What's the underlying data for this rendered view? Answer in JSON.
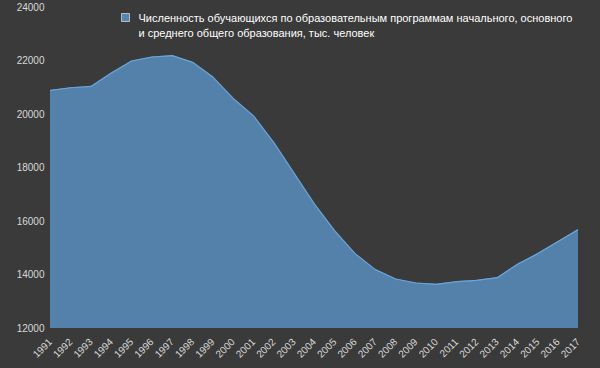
{
  "chart_data": {
    "type": "area",
    "x": [
      1991,
      1992,
      1993,
      1994,
      1995,
      1996,
      1997,
      1998,
      1999,
      2000,
      2001,
      2002,
      2003,
      2004,
      2005,
      2006,
      2007,
      2008,
      2009,
      2010,
      2011,
      2012,
      2013,
      2014,
      2015,
      2016,
      2017
    ],
    "series": [
      {
        "name": "Численность обучающихся по образовательным программам начального, основного и среднего общего образования, тыс. человек",
        "color": "#5585b0",
        "values": [
          20900,
          21000,
          21050,
          21550,
          22000,
          22150,
          22200,
          21950,
          21400,
          20600,
          19950,
          18950,
          17800,
          16650,
          15650,
          14800,
          14200,
          13850,
          13700,
          13650,
          13750,
          13800,
          13900,
          14400,
          14800,
          15250,
          15700
        ]
      }
    ],
    "xlim": [
      1991,
      2017
    ],
    "xticks": [
      1991,
      1992,
      1993,
      1994,
      1995,
      1996,
      1997,
      1998,
      1999,
      2000,
      2001,
      2002,
      2003,
      2004,
      2005,
      2006,
      2007,
      2008,
      2009,
      2010,
      2011,
      2012,
      2013,
      2014,
      2015,
      2016,
      2017
    ],
    "ylim": [
      12000,
      24000
    ],
    "yticks": [
      12000,
      14000,
      16000,
      18000,
      20000,
      22000,
      24000
    ],
    "grid": false,
    "legend": "top-left"
  }
}
